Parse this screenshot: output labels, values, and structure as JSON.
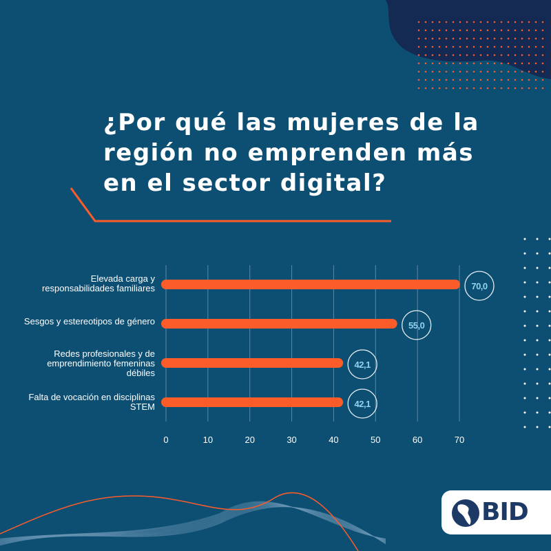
{
  "title": "¿Por qué las mujeres de la región no emprenden más en el sector digital?",
  "colors": {
    "background": "#0d4f73",
    "bar": "#fb5c2a",
    "accent_dark": "#152a52",
    "value_text": "#8fd3ef",
    "grid": "#5b8aa6"
  },
  "chart_data": {
    "type": "bar",
    "orientation": "horizontal",
    "title": "¿Por qué las mujeres de la región no emprenden más en el sector digital?",
    "categories": [
      "Elevada carga y responsabilidades familiares",
      "Sesgos y estereotipos de género",
      "Redes profesionales y de emprendimiento femeninas débiles",
      "Falta de vocación en disciplinas STEM"
    ],
    "values": [
      70.0,
      55.0,
      42.1,
      42.1
    ],
    "value_labels": [
      "70,0",
      "55,0",
      "42,1",
      "42,1"
    ],
    "xlim": [
      0,
      70
    ],
    "xticks": [
      "0",
      "10",
      "20",
      "30",
      "40",
      "50",
      "60",
      "70"
    ],
    "xlabel": "",
    "ylabel": "",
    "grid": "vertical"
  },
  "logo": {
    "text": "BID",
    "icon": "americas-globe-icon"
  }
}
